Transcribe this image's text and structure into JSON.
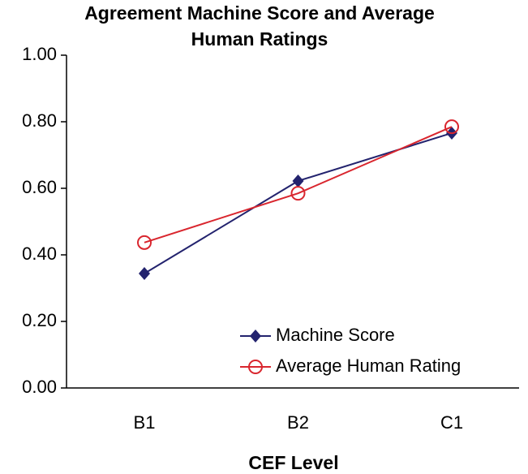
{
  "chart_data": {
    "type": "line",
    "title": "Agreement Machine Score and Average Human Ratings",
    "x_label": "CEF Level",
    "categories": [
      "B1",
      "B2",
      "C1"
    ],
    "series": [
      {
        "name": "Machine Score",
        "color": "#23236e",
        "marker": "diamond",
        "values": [
          0.344,
          0.622,
          0.766
        ]
      },
      {
        "name": "Average Human Rating",
        "color": "#d9262e",
        "marker": "circle",
        "values": [
          0.437,
          0.585,
          0.785
        ]
      }
    ],
    "ylim": [
      0,
      1
    ],
    "yticks": [
      {
        "value": 0,
        "label": "0.00"
      },
      {
        "value": 0.2,
        "label": "0.20"
      },
      {
        "value": 0.4,
        "label": "0.40"
      },
      {
        "value": 0.6,
        "label": "0.60"
      },
      {
        "value": 0.8,
        "label": "0.80"
      },
      {
        "value": 1,
        "label": "1.00"
      }
    ],
    "grid": false,
    "legend": "lower right"
  }
}
